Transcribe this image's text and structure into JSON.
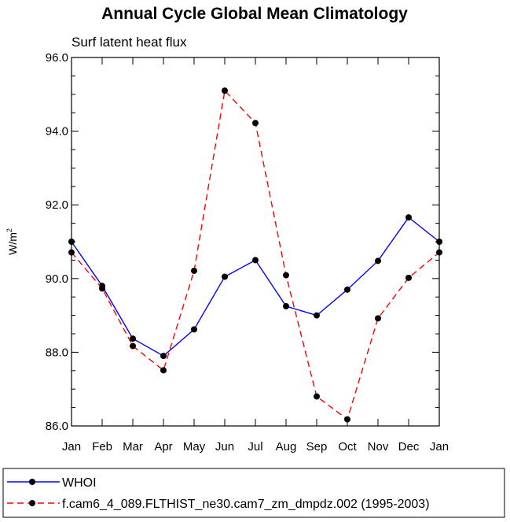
{
  "chart_data": {
    "type": "line",
    "title": "Annual Cycle Global Mean Climatology",
    "subtitle": "Surf latent heat flux",
    "ylabel": "W/m",
    "ylabel_superscript": "2",
    "categories": [
      "Jan",
      "Feb",
      "Mar",
      "Apr",
      "May",
      "Jun",
      "Jul",
      "Aug",
      "Sep",
      "Oct",
      "Nov",
      "Dec",
      "Jan"
    ],
    "ylim": [
      86.0,
      96.0
    ],
    "yticks": [
      "86.0",
      "88.0",
      "90.0",
      "92.0",
      "94.0",
      "96.0"
    ],
    "grid": false,
    "legend_position": "bottom",
    "series": [
      {
        "name": "WHOI",
        "color": "#0000ff",
        "style": "solid",
        "values": [
          91.0,
          89.8,
          88.37,
          87.9,
          88.62,
          90.05,
          90.5,
          89.25,
          89.0,
          89.7,
          90.48,
          91.66,
          91.0
        ]
      },
      {
        "name": "f.cam6_4_089.FLTHIST_ne30.cam7_zm_dmpdz.002 (1995-2003)",
        "color": "#ff0000",
        "style": "dashed",
        "values": [
          90.71,
          89.73,
          88.17,
          87.51,
          90.21,
          95.1,
          94.22,
          90.09,
          86.8,
          86.18,
          88.92,
          90.02,
          90.71
        ]
      }
    ]
  }
}
